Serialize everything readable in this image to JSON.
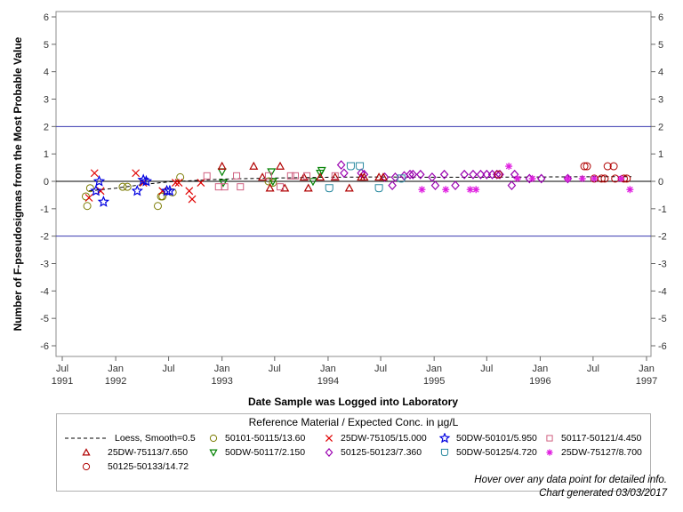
{
  "footer": {
    "hover_note": "Hover over any data point for detailed info.",
    "generated": "Chart generated 03/03/2017"
  },
  "chart_data": {
    "type": "scatter",
    "xlabel": "Date Sample was Logged into Laboratory",
    "ylabel": "Number of F-pseudosigmas from the Most Probable Value",
    "xlim": [
      "1991-07-01",
      "1997-01-01"
    ],
    "ylim": [
      -6,
      6
    ],
    "y_ticks": [
      -6,
      -5,
      -4,
      -3,
      -2,
      -1,
      0,
      1,
      2,
      3,
      4,
      5,
      6
    ],
    "y_ticks_right": true,
    "x_ticks": [
      {
        "date": "1991-07-01",
        "line1": "Jul",
        "line2": "1991"
      },
      {
        "date": "1992-01-01",
        "line1": "Jan",
        "line2": "1992"
      },
      {
        "date": "1992-07-01",
        "line1": "Jul",
        "line2": ""
      },
      {
        "date": "1993-01-01",
        "line1": "Jan",
        "line2": "1993"
      },
      {
        "date": "1993-07-01",
        "line1": "Jul",
        "line2": ""
      },
      {
        "date": "1994-01-01",
        "line1": "Jan",
        "line2": "1994"
      },
      {
        "date": "1994-07-01",
        "line1": "Jul",
        "line2": ""
      },
      {
        "date": "1995-01-01",
        "line1": "Jan",
        "line2": "1995"
      },
      {
        "date": "1995-07-01",
        "line1": "Jul",
        "line2": ""
      },
      {
        "date": "1996-01-01",
        "line1": "Jan",
        "line2": "1996"
      },
      {
        "date": "1996-07-01",
        "line1": "Jul",
        "line2": ""
      },
      {
        "date": "1997-01-01",
        "line1": "Jan",
        "line2": "1997"
      }
    ],
    "reference_lines": [
      {
        "y": 2,
        "color": "#3a3ab0"
      },
      {
        "y": 0,
        "color": "#000000"
      },
      {
        "y": -2,
        "color": "#3a3ab0"
      }
    ],
    "grid": false,
    "legend_placement": "bottom",
    "legend_title": "Reference Material / Expected Conc. in µg/L",
    "loess": {
      "name": "Loess, Smooth=0.5",
      "color": "#000000",
      "points": [
        {
          "x": "1991-10-01",
          "y": -0.35
        },
        {
          "x": "1992-01-01",
          "y": -0.25
        },
        {
          "x": "1992-04-01",
          "y": -0.12
        },
        {
          "x": "1992-07-01",
          "y": -0.02
        },
        {
          "x": "1993-01-01",
          "y": 0.08
        },
        {
          "x": "1993-07-01",
          "y": 0.12
        },
        {
          "x": "1994-01-01",
          "y": 0.15
        },
        {
          "x": "1994-07-01",
          "y": 0.16
        },
        {
          "x": "1995-01-01",
          "y": 0.15
        },
        {
          "x": "1995-07-01",
          "y": 0.15
        },
        {
          "x": "1996-01-01",
          "y": 0.16
        },
        {
          "x": "1996-07-01",
          "y": 0.17
        },
        {
          "x": "1996-11-10",
          "y": 0.17
        }
      ]
    },
    "series": [
      {
        "name": "50101-50115/13.60",
        "marker": "circle",
        "color": "#7a7a00",
        "points": [
          {
            "x": "1991-09-20",
            "y": -0.55
          },
          {
            "x": "1991-09-25",
            "y": -0.9
          },
          {
            "x": "1991-10-05",
            "y": -0.25
          },
          {
            "x": "1992-01-25",
            "y": -0.2
          },
          {
            "x": "1992-02-10",
            "y": -0.2
          },
          {
            "x": "1992-05-25",
            "y": -0.9
          },
          {
            "x": "1992-06-05",
            "y": -0.55
          },
          {
            "x": "1992-06-10",
            "y": -0.55
          },
          {
            "x": "1992-07-15",
            "y": -0.4
          },
          {
            "x": "1992-08-10",
            "y": 0.15
          },
          {
            "x": "1993-06-10",
            "y": 0.0
          },
          {
            "x": "1993-06-25",
            "y": -0.05
          }
        ]
      },
      {
        "name": "50DW-50117/2.150",
        "marker": "triangle-down",
        "color": "#008000",
        "points": [
          {
            "x": "1993-01-01",
            "y": 0.35
          },
          {
            "x": "1993-01-05",
            "y": -0.05
          },
          {
            "x": "1993-06-20",
            "y": 0.35
          },
          {
            "x": "1993-06-25",
            "y": 0.0
          },
          {
            "x": "1993-11-10",
            "y": 0.0
          },
          {
            "x": "1993-12-05",
            "y": 0.3
          },
          {
            "x": "1993-12-10",
            "y": 0.4
          }
        ]
      },
      {
        "name": "50125-50123/7.360",
        "marker": "diamond",
        "color": "#9a00b0",
        "points": [
          {
            "x": "1994-02-15",
            "y": 0.6
          },
          {
            "x": "1994-02-25",
            "y": 0.3
          },
          {
            "x": "1994-04-25",
            "y": 0.3
          },
          {
            "x": "1994-05-05",
            "y": 0.25
          },
          {
            "x": "1994-07-15",
            "y": 0.15
          },
          {
            "x": "1994-08-10",
            "y": -0.15
          },
          {
            "x": "1994-08-20",
            "y": 0.15
          },
          {
            "x": "1994-09-20",
            "y": 0.2
          },
          {
            "x": "1994-10-10",
            "y": 0.25
          },
          {
            "x": "1994-10-20",
            "y": 0.25
          },
          {
            "x": "1994-11-15",
            "y": 0.25
          },
          {
            "x": "1994-12-25",
            "y": 0.15
          },
          {
            "x": "1995-01-05",
            "y": -0.15
          },
          {
            "x": "1995-02-05",
            "y": 0.25
          },
          {
            "x": "1995-03-15",
            "y": -0.15
          },
          {
            "x": "1995-04-15",
            "y": 0.25
          },
          {
            "x": "1995-05-15",
            "y": 0.25
          },
          {
            "x": "1995-06-10",
            "y": 0.25
          },
          {
            "x": "1995-07-01",
            "y": 0.25
          },
          {
            "x": "1995-07-20",
            "y": 0.25
          },
          {
            "x": "1995-08-05",
            "y": 0.25
          },
          {
            "x": "1995-08-15",
            "y": 0.25
          },
          {
            "x": "1995-09-25",
            "y": -0.15
          },
          {
            "x": "1995-10-05",
            "y": 0.25
          },
          {
            "x": "1995-11-25",
            "y": 0.1
          },
          {
            "x": "1996-01-05",
            "y": 0.1
          },
          {
            "x": "1996-04-05",
            "y": 0.1
          }
        ]
      },
      {
        "name": "50125-50133/14.72",
        "marker": "circle",
        "color": "#b00000",
        "points": [
          {
            "x": "1995-08-10",
            "y": 0.25
          },
          {
            "x": "1996-06-01",
            "y": 0.55
          },
          {
            "x": "1996-06-10",
            "y": 0.55
          },
          {
            "x": "1996-07-05",
            "y": 0.1
          },
          {
            "x": "1996-07-30",
            "y": 0.1
          },
          {
            "x": "1996-08-10",
            "y": 0.1
          },
          {
            "x": "1996-08-20",
            "y": 0.55
          },
          {
            "x": "1996-09-10",
            "y": 0.55
          },
          {
            "x": "1996-09-15",
            "y": 0.1
          },
          {
            "x": "1996-10-15",
            "y": 0.1
          },
          {
            "x": "1996-10-25",
            "y": 0.1
          }
        ]
      },
      {
        "name": "25DW-75105/15.000",
        "marker": "x",
        "color": "#e00000",
        "points": [
          {
            "x": "1991-10-01",
            "y": -0.6
          },
          {
            "x": "1991-10-20",
            "y": 0.3
          },
          {
            "x": "1991-11-10",
            "y": -0.35
          },
          {
            "x": "1992-03-10",
            "y": 0.3
          },
          {
            "x": "1992-04-05",
            "y": -0.05
          },
          {
            "x": "1992-06-10",
            "y": -0.35
          },
          {
            "x": "1992-07-25",
            "y": -0.05
          },
          {
            "x": "1992-08-05",
            "y": -0.05
          },
          {
            "x": "1992-09-10",
            "y": -0.35
          },
          {
            "x": "1992-09-20",
            "y": -0.65
          },
          {
            "x": "1992-10-20",
            "y": -0.05
          }
        ]
      },
      {
        "name": "50DW-50125/4.720",
        "marker": "shield",
        "color": "#2a8aa0",
        "points": [
          {
            "x": "1994-01-05",
            "y": -0.25
          },
          {
            "x": "1994-03-20",
            "y": 0.55
          },
          {
            "x": "1994-04-20",
            "y": 0.55
          },
          {
            "x": "1994-06-25",
            "y": -0.25
          },
          {
            "x": "1994-09-10",
            "y": 0.1
          }
        ]
      },
      {
        "name": "25DW-75113/7.650",
        "marker": "triangle",
        "color": "#b00000",
        "points": [
          {
            "x": "1993-01-01",
            "y": 0.55
          },
          {
            "x": "1993-04-20",
            "y": 0.55
          },
          {
            "x": "1993-05-20",
            "y": 0.15
          },
          {
            "x": "1993-06-15",
            "y": -0.25
          },
          {
            "x": "1993-07-20",
            "y": 0.55
          },
          {
            "x": "1993-08-05",
            "y": -0.25
          },
          {
            "x": "1993-10-10",
            "y": 0.15
          },
          {
            "x": "1993-10-25",
            "y": -0.25
          },
          {
            "x": "1993-12-05",
            "y": 0.15
          },
          {
            "x": "1994-01-25",
            "y": 0.15
          },
          {
            "x": "1994-03-15",
            "y": -0.25
          },
          {
            "x": "1994-04-25",
            "y": 0.15
          },
          {
            "x": "1994-05-05",
            "y": 0.15
          },
          {
            "x": "1994-06-25",
            "y": 0.15
          },
          {
            "x": "1994-07-10",
            "y": 0.15
          }
        ]
      },
      {
        "name": "50DW-50101/5.950",
        "marker": "star",
        "color": "#0000e0",
        "points": [
          {
            "x": "1991-10-25",
            "y": -0.35
          },
          {
            "x": "1991-11-05",
            "y": 0.0
          },
          {
            "x": "1991-11-20",
            "y": -0.75
          },
          {
            "x": "1992-03-15",
            "y": -0.35
          },
          {
            "x": "1992-04-05",
            "y": 0.05
          },
          {
            "x": "1992-04-15",
            "y": 0.0
          },
          {
            "x": "1992-06-25",
            "y": -0.35
          },
          {
            "x": "1992-07-05",
            "y": -0.35
          }
        ]
      },
      {
        "name": "50117-50121/4.450",
        "marker": "square",
        "color": "#d06080",
        "points": [
          {
            "x": "1992-11-10",
            "y": 0.2
          },
          {
            "x": "1992-12-20",
            "y": -0.2
          },
          {
            "x": "1993-01-10",
            "y": -0.2
          },
          {
            "x": "1993-02-20",
            "y": 0.2
          },
          {
            "x": "1993-03-05",
            "y": -0.2
          },
          {
            "x": "1993-06-10",
            "y": 0.2
          },
          {
            "x": "1993-07-20",
            "y": -0.2
          },
          {
            "x": "1993-08-25",
            "y": 0.2
          },
          {
            "x": "1993-09-10",
            "y": 0.2
          },
          {
            "x": "1993-10-20",
            "y": 0.2
          },
          {
            "x": "1994-01-25",
            "y": 0.2
          }
        ]
      },
      {
        "name": "25DW-75127/8.700",
        "marker": "asterisk",
        "color": "#e020e0",
        "points": [
          {
            "x": "1994-11-20",
            "y": -0.3
          },
          {
            "x": "1995-02-10",
            "y": -0.3
          },
          {
            "x": "1995-05-05",
            "y": -0.3
          },
          {
            "x": "1995-05-25",
            "y": -0.3
          },
          {
            "x": "1995-09-15",
            "y": 0.55
          },
          {
            "x": "1995-10-15",
            "y": 0.1
          },
          {
            "x": "1995-12-05",
            "y": 0.1
          },
          {
            "x": "1996-04-05",
            "y": 0.1
          },
          {
            "x": "1996-05-25",
            "y": 0.1
          },
          {
            "x": "1996-07-05",
            "y": 0.1
          },
          {
            "x": "1996-10-05",
            "y": 0.1
          },
          {
            "x": "1996-11-05",
            "y": -0.3
          }
        ]
      }
    ]
  }
}
